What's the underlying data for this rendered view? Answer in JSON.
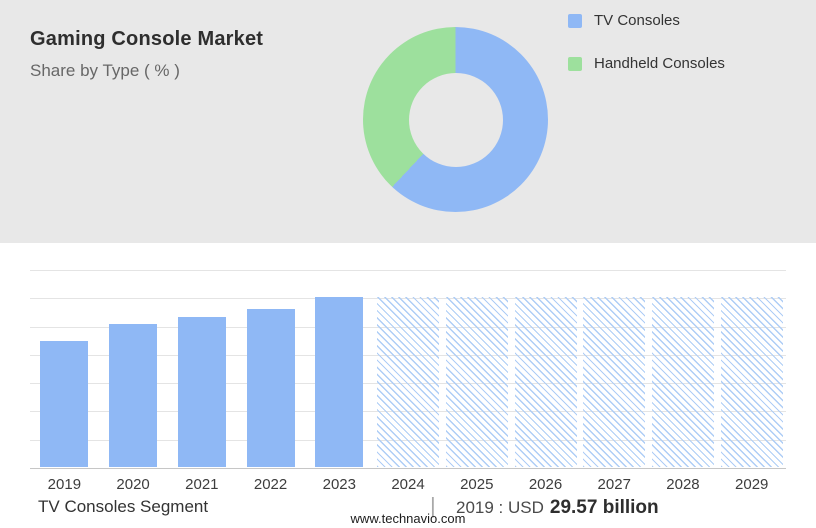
{
  "header": {
    "title": "Gaming Console Market",
    "subtitle": "Share by Type ( % )"
  },
  "legend": [
    {
      "label": "TV Consoles",
      "color": "#8fb8f5"
    },
    {
      "label": "Handheld Consoles",
      "color": "#9de09d"
    }
  ],
  "footer": {
    "segment_label": "TV Consoles Segment",
    "separator": "|",
    "value_prefix": "2019 : USD",
    "value_bold": "29.57 billion",
    "website": "www.technavio.com"
  },
  "colors": {
    "panel_gray": "#e8e8e8",
    "bar_blue": "#8fb8f5",
    "hatch_blue": "#aecdf6",
    "green": "#9de09d",
    "gridline": "#e4e4e4",
    "axis": "#c6c6c6"
  },
  "chart_data": [
    {
      "type": "pie",
      "title": "Gaming Console Market — Share by Type ( % )",
      "labels": [
        "TV Consoles",
        "Handheld Consoles"
      ],
      "values": [
        62,
        38
      ],
      "colors": [
        "#8fb8f5",
        "#9de09d"
      ],
      "donut": true,
      "legend_position": "right"
    },
    {
      "type": "bar",
      "title": "TV Consoles Segment",
      "categories": [
        "2019",
        "2020",
        "2021",
        "2022",
        "2023",
        "2024",
        "2025",
        "2026",
        "2027",
        "2028",
        "2029"
      ],
      "values": [
        74,
        84,
        88,
        93,
        100,
        100,
        100,
        100,
        100,
        100,
        100
      ],
      "solid_years": [
        "2019",
        "2020",
        "2021",
        "2022",
        "2023"
      ],
      "hatched_forecast_years": [
        "2024",
        "2025",
        "2026",
        "2027",
        "2028",
        "2029"
      ],
      "annotation": "2019 : USD 29.57 billion",
      "xlabel": "",
      "ylabel": "",
      "ylim": [
        0,
        100
      ],
      "grid": true,
      "legend_position": "none"
    }
  ]
}
